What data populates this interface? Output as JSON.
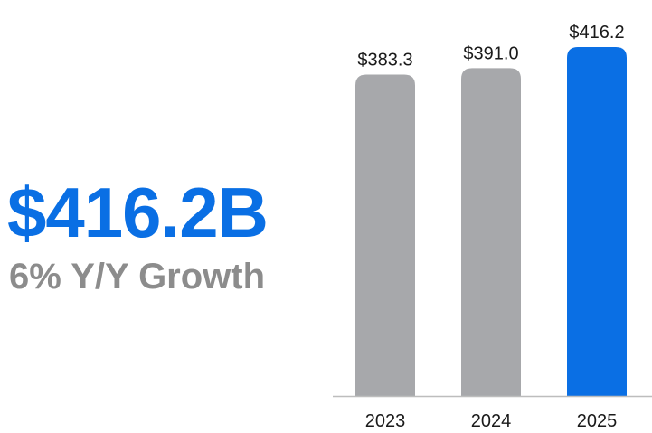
{
  "summary": {
    "headline": "$416.2B",
    "subline": "6% Y/Y Growth"
  },
  "colors": {
    "accent": "#0a6fe4",
    "bar_default": "#a7a8ab",
    "bar_highlight": "#0a6fe4",
    "subline": "#8c8c8c",
    "axis": "#bdbdbd",
    "label": "#1a1a1a"
  },
  "chart_data": {
    "type": "bar",
    "categories": [
      "2023",
      "2024",
      "2025"
    ],
    "values": [
      383.3,
      391.0,
      416.2
    ],
    "data_labels": [
      "$383.3",
      "$391.0",
      "$416.2"
    ],
    "highlight_index": 2,
    "title": "",
    "xlabel": "",
    "ylabel": "",
    "ylim": [
      0,
      416.2
    ],
    "grid": false,
    "legend": "none"
  }
}
